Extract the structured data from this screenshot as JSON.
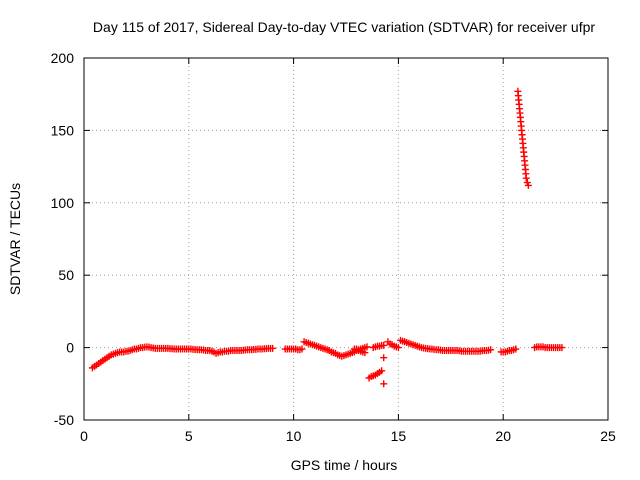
{
  "chart_data": {
    "type": "scatter",
    "title": "Day 115 of 2017, Sidereal Day-to-day VTEC variation (SDTVAR) for receiver ufpr",
    "xlabel": "GPS time / hours",
    "ylabel": "SDTVAR / TECUs",
    "xlim": [
      0,
      25
    ],
    "ylim": [
      -50,
      200
    ],
    "xticks": [
      0,
      5,
      10,
      15,
      20,
      25
    ],
    "yticks": [
      -50,
      0,
      50,
      100,
      150,
      200
    ],
    "grid": true,
    "marker": "+",
    "color": "#ff0000",
    "series": [
      {
        "name": "SDTVAR",
        "points": [
          [
            0.4,
            -14
          ],
          [
            0.5,
            -13
          ],
          [
            0.6,
            -12
          ],
          [
            0.7,
            -11
          ],
          [
            0.8,
            -10
          ],
          [
            0.9,
            -9
          ],
          [
            1.0,
            -8
          ],
          [
            1.1,
            -7
          ],
          [
            1.2,
            -6
          ],
          [
            1.3,
            -5
          ],
          [
            1.4,
            -4.5
          ],
          [
            1.5,
            -4
          ],
          [
            1.6,
            -3.5
          ],
          [
            1.7,
            -3
          ],
          [
            1.8,
            -3
          ],
          [
            1.9,
            -3
          ],
          [
            2.0,
            -2.5
          ],
          [
            2.1,
            -2.5
          ],
          [
            2.2,
            -2
          ],
          [
            2.3,
            -1.5
          ],
          [
            2.4,
            -1
          ],
          [
            2.5,
            -1
          ],
          [
            2.6,
            -0.5
          ],
          [
            2.7,
            0
          ],
          [
            2.8,
            0
          ],
          [
            2.9,
            0.3
          ],
          [
            3.0,
            0.5
          ],
          [
            3.1,
            0.3
          ],
          [
            3.2,
            0
          ],
          [
            3.3,
            -0.3
          ],
          [
            3.4,
            -0.5
          ],
          [
            3.5,
            -0.5
          ],
          [
            3.6,
            -0.5
          ],
          [
            3.7,
            -0.5
          ],
          [
            3.8,
            -0.5
          ],
          [
            3.9,
            -0.5
          ],
          [
            4.0,
            -0.5
          ],
          [
            4.1,
            -0.7
          ],
          [
            4.2,
            -0.8
          ],
          [
            4.3,
            -1
          ],
          [
            4.4,
            -1
          ],
          [
            4.5,
            -1
          ],
          [
            4.6,
            -1
          ],
          [
            4.7,
            -1
          ],
          [
            4.8,
            -1
          ],
          [
            4.9,
            -1
          ],
          [
            5.0,
            -1
          ],
          [
            5.1,
            -1
          ],
          [
            5.2,
            -1.2
          ],
          [
            5.3,
            -1.3
          ],
          [
            5.4,
            -1.5
          ],
          [
            5.5,
            -1.5
          ],
          [
            5.6,
            -1.5
          ],
          [
            5.7,
            -1.7
          ],
          [
            5.8,
            -2
          ],
          [
            5.9,
            -2
          ],
          [
            6.0,
            -2
          ],
          [
            6.1,
            -2.5
          ],
          [
            6.2,
            -3
          ],
          [
            6.3,
            -4
          ],
          [
            6.4,
            -3.5
          ],
          [
            6.5,
            -3
          ],
          [
            6.6,
            -3
          ],
          [
            6.7,
            -2.5
          ],
          [
            6.8,
            -2.5
          ],
          [
            6.9,
            -2.5
          ],
          [
            7.0,
            -2
          ],
          [
            7.1,
            -2
          ],
          [
            7.2,
            -2
          ],
          [
            7.3,
            -2
          ],
          [
            7.4,
            -2
          ],
          [
            7.5,
            -2
          ],
          [
            7.6,
            -1.8
          ],
          [
            7.7,
            -1.7
          ],
          [
            7.8,
            -1.5
          ],
          [
            7.9,
            -1.5
          ],
          [
            8.0,
            -1.5
          ],
          [
            8.1,
            -1.3
          ],
          [
            8.2,
            -1.2
          ],
          [
            8.3,
            -1
          ],
          [
            8.4,
            -1
          ],
          [
            8.5,
            -1
          ],
          [
            8.6,
            -0.8
          ],
          [
            8.7,
            -0.7
          ],
          [
            8.8,
            -0.5
          ],
          [
            8.9,
            -0.5
          ],
          [
            9.0,
            -0.5
          ],
          [
            9.6,
            -1
          ],
          [
            9.7,
            -1
          ],
          [
            9.8,
            -1
          ],
          [
            9.9,
            -1
          ],
          [
            10.0,
            -1
          ],
          [
            10.1,
            -1
          ],
          [
            10.2,
            -1.5
          ],
          [
            10.3,
            -1.5
          ],
          [
            10.4,
            -1
          ],
          [
            10.5,
            4
          ],
          [
            10.6,
            3.5
          ],
          [
            10.7,
            3
          ],
          [
            10.8,
            2.5
          ],
          [
            10.9,
            2
          ],
          [
            11.0,
            1.5
          ],
          [
            11.1,
            1
          ],
          [
            11.2,
            0.5
          ],
          [
            11.3,
            0
          ],
          [
            11.4,
            -0.5
          ],
          [
            11.5,
            -1
          ],
          [
            11.6,
            -1.5
          ],
          [
            11.7,
            -2
          ],
          [
            11.8,
            -3
          ],
          [
            11.9,
            -3.5
          ],
          [
            12.0,
            -4
          ],
          [
            12.1,
            -5
          ],
          [
            12.2,
            -5.5
          ],
          [
            12.3,
            -6
          ],
          [
            12.4,
            -5.5
          ],
          [
            12.5,
            -5
          ],
          [
            12.6,
            -4.5
          ],
          [
            12.7,
            -4
          ],
          [
            12.8,
            -3.5
          ],
          [
            12.9,
            -3
          ],
          [
            13.0,
            -2
          ],
          [
            13.1,
            -1.5
          ],
          [
            13.2,
            -1
          ],
          [
            13.3,
            -0.5
          ],
          [
            13.4,
            0
          ],
          [
            13.5,
            0.5
          ],
          [
            12.9,
            -1
          ],
          [
            13.0,
            -1
          ],
          [
            13.1,
            -2
          ],
          [
            13.2,
            -2.5
          ],
          [
            13.3,
            -3
          ],
          [
            13.4,
            -3.5
          ],
          [
            13.6,
            -21
          ],
          [
            13.7,
            -20
          ],
          [
            13.8,
            -19.5
          ],
          [
            13.9,
            -19
          ],
          [
            14.0,
            -18
          ],
          [
            14.1,
            -17
          ],
          [
            14.2,
            -16
          ],
          [
            14.3,
            -7
          ],
          [
            14.3,
            -25
          ],
          [
            13.8,
            0
          ],
          [
            13.9,
            0.5
          ],
          [
            14.0,
            1
          ],
          [
            14.1,
            1
          ],
          [
            14.2,
            1.5
          ],
          [
            14.3,
            1.5
          ],
          [
            14.5,
            4
          ],
          [
            14.6,
            2.5
          ],
          [
            14.7,
            2
          ],
          [
            14.8,
            1
          ],
          [
            14.9,
            0.5
          ],
          [
            15.0,
            0
          ],
          [
            15.1,
            5
          ],
          [
            15.2,
            4.5
          ],
          [
            15.3,
            4
          ],
          [
            15.4,
            3.5
          ],
          [
            15.5,
            3
          ],
          [
            15.6,
            2.5
          ],
          [
            15.7,
            2
          ],
          [
            15.8,
            1.5
          ],
          [
            15.9,
            1
          ],
          [
            16.0,
            0.5
          ],
          [
            16.1,
            0
          ],
          [
            16.2,
            -0.3
          ],
          [
            16.3,
            -0.5
          ],
          [
            16.4,
            -0.7
          ],
          [
            16.5,
            -1
          ],
          [
            16.6,
            -1
          ],
          [
            16.7,
            -1.2
          ],
          [
            16.8,
            -1.5
          ],
          [
            16.9,
            -1.5
          ],
          [
            17.0,
            -1.7
          ],
          [
            17.1,
            -2
          ],
          [
            17.2,
            -2
          ],
          [
            17.3,
            -2
          ],
          [
            17.4,
            -2
          ],
          [
            17.5,
            -2
          ],
          [
            17.6,
            -2
          ],
          [
            17.7,
            -2
          ],
          [
            17.8,
            -2
          ],
          [
            17.9,
            -2.2
          ],
          [
            18.0,
            -2.5
          ],
          [
            18.1,
            -2.5
          ],
          [
            18.2,
            -2.5
          ],
          [
            18.3,
            -2.5
          ],
          [
            18.4,
            -2.5
          ],
          [
            18.5,
            -2.5
          ],
          [
            18.6,
            -2.5
          ],
          [
            18.7,
            -2.5
          ],
          [
            18.8,
            -2.5
          ],
          [
            18.9,
            -2.5
          ],
          [
            19.0,
            -2.2
          ],
          [
            19.1,
            -2
          ],
          [
            19.2,
            -2
          ],
          [
            19.3,
            -1.8
          ],
          [
            19.4,
            -1.5
          ],
          [
            19.9,
            -3
          ],
          [
            20.0,
            -3
          ],
          [
            20.1,
            -3
          ],
          [
            20.2,
            -2.5
          ],
          [
            20.3,
            -2
          ],
          [
            20.4,
            -2
          ],
          [
            20.5,
            -1.5
          ],
          [
            20.6,
            -1
          ],
          [
            20.7,
            177
          ],
          [
            20.72,
            174
          ],
          [
            20.74,
            171
          ],
          [
            20.76,
            168
          ],
          [
            20.78,
            165
          ],
          [
            20.8,
            162
          ],
          [
            20.82,
            159
          ],
          [
            20.84,
            156
          ],
          [
            20.86,
            153
          ],
          [
            20.88,
            150
          ],
          [
            20.9,
            147
          ],
          [
            20.92,
            144
          ],
          [
            20.94,
            141
          ],
          [
            20.96,
            138
          ],
          [
            20.98,
            135
          ],
          [
            21.0,
            132
          ],
          [
            21.02,
            129
          ],
          [
            21.04,
            126
          ],
          [
            21.06,
            123
          ],
          [
            21.08,
            120
          ],
          [
            21.1,
            117
          ],
          [
            21.15,
            114
          ],
          [
            21.2,
            112
          ],
          [
            21.5,
            0
          ],
          [
            21.6,
            0.5
          ],
          [
            21.7,
            0.5
          ],
          [
            21.8,
            0.5
          ],
          [
            21.9,
            0.5
          ],
          [
            22.0,
            0
          ],
          [
            22.1,
            0
          ],
          [
            22.2,
            0
          ],
          [
            22.3,
            0
          ],
          [
            22.4,
            0
          ],
          [
            22.5,
            0
          ],
          [
            22.6,
            0
          ],
          [
            22.7,
            0
          ],
          [
            22.8,
            0
          ]
        ]
      }
    ]
  }
}
